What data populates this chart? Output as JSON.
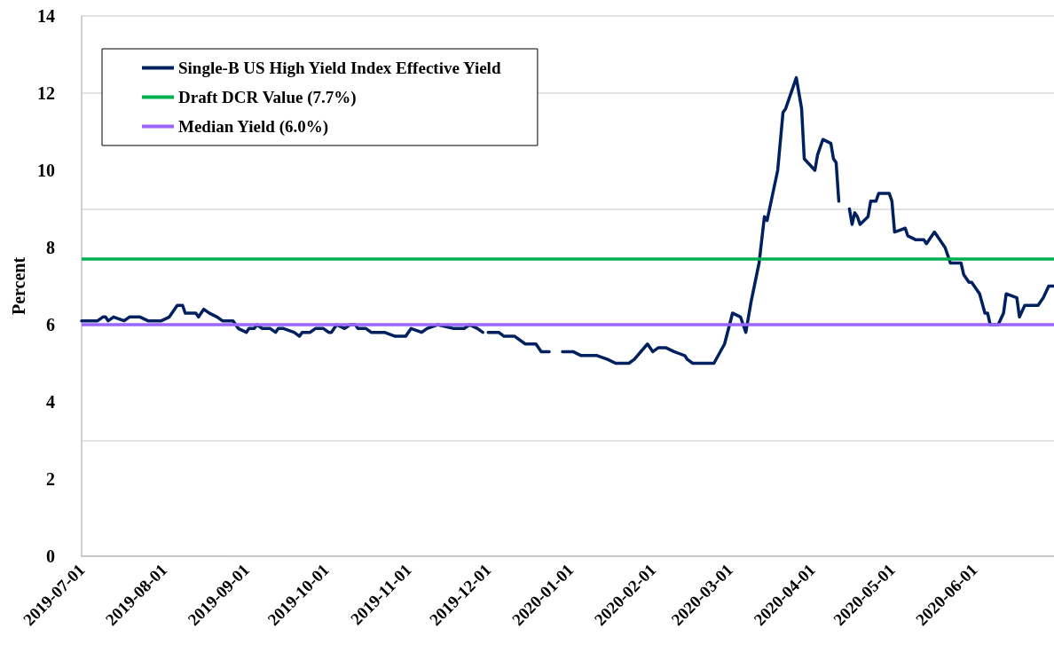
{
  "chart_data": {
    "type": "line",
    "ylabel": "Percent",
    "x": [
      "2019-07-01",
      "2019-07-05",
      "2019-07-07",
      "2019-07-09",
      "2019-07-10",
      "2019-07-11",
      "2019-07-13",
      "2019-07-17",
      "2019-07-19",
      "2019-07-23",
      "2019-07-26",
      "2019-07-31",
      "2019-08-03",
      "2019-08-06",
      "2019-08-07",
      "2019-08-08",
      "2019-08-09",
      "2019-08-13",
      "2019-08-14",
      "2019-08-16",
      "2019-08-18",
      "2019-08-21",
      "2019-08-23",
      "2019-08-27",
      "2019-08-29",
      "2019-09-01",
      "2019-09-02",
      "2019-09-04",
      "2019-09-05",
      "2019-09-07",
      "2019-09-10",
      "2019-09-12",
      "2019-09-13",
      "2019-09-15",
      "2019-09-19",
      "2019-09-21",
      "2019-09-22",
      "2019-09-25",
      "2019-09-27",
      "2019-09-30",
      "2019-10-02",
      "2019-10-03",
      "2019-10-05",
      "2019-10-08",
      "2019-10-10",
      "2019-10-12",
      "2019-10-13",
      "2019-10-16",
      "2019-10-18",
      "2019-10-20",
      "2019-10-23",
      "2019-10-27",
      "2019-10-31",
      "2019-11-02",
      "2019-11-06",
      "2019-11-08",
      "2019-11-12",
      "2019-11-18",
      "2019-11-22",
      "2019-11-24",
      "2019-11-27",
      "2019-11-29",
      "2019-11-30",
      "2019-12-01",
      "2019-12-05",
      "2019-12-07",
      "2019-12-08",
      "2019-12-11",
      "2019-12-15",
      "2019-12-19",
      "2019-12-21",
      "2019-12-24",
      "2019-12-27",
      "2019-12-29",
      "2020-01-02",
      "2020-01-05",
      "2020-01-11",
      "2020-01-15",
      "2020-01-18",
      "2020-01-23",
      "2020-01-25",
      "2020-01-30",
      "2020-02-01",
      "2020-02-03",
      "2020-02-06",
      "2020-02-09",
      "2020-02-13",
      "2020-02-14",
      "2020-02-16",
      "2020-02-22",
      "2020-02-24",
      "2020-02-28",
      "2020-03-02",
      "2020-03-05",
      "2020-03-07",
      "2020-03-09",
      "2020-03-12",
      "2020-03-14",
      "2020-03-15",
      "2020-03-19",
      "2020-03-21",
      "2020-03-22",
      "2020-03-26",
      "2020-03-28",
      "2020-03-29",
      "2020-04-02",
      "2020-04-03",
      "2020-04-05",
      "2020-04-08",
      "2020-04-09",
      "2020-04-10",
      "2020-04-11",
      "2020-04-13",
      "2020-04-15",
      "2020-04-16",
      "2020-04-17",
      "2020-04-18",
      "2020-04-19",
      "2020-04-22",
      "2020-04-23",
      "2020-04-25",
      "2020-04-26",
      "2020-04-30",
      "2020-05-01",
      "2020-05-02",
      "2020-05-06",
      "2020-05-07",
      "2020-05-10",
      "2020-05-13",
      "2020-05-14",
      "2020-05-17",
      "2020-05-21",
      "2020-05-23",
      "2020-05-27",
      "2020-05-28",
      "2020-05-30",
      "2020-05-31",
      "2020-06-03",
      "2020-06-05",
      "2020-06-06",
      "2020-06-07",
      "2020-06-10",
      "2020-06-12",
      "2020-06-13",
      "2020-06-17",
      "2020-06-18",
      "2020-06-20",
      "2020-06-25",
      "2020-06-27",
      "2020-06-29",
      "2020-07-01"
    ],
    "series": [
      {
        "name": "Single-B US High Yield Index Effective Yield",
        "color": "#002060",
        "values": [
          6.1,
          6.1,
          6.1,
          6.2,
          6.2,
          6.1,
          6.2,
          6.1,
          6.2,
          6.2,
          6.1,
          6.1,
          6.2,
          6.5,
          6.5,
          6.5,
          6.3,
          6.3,
          6.2,
          6.4,
          6.3,
          6.2,
          6.1,
          6.1,
          5.9,
          5.8,
          5.9,
          5.9,
          6.0,
          5.9,
          5.9,
          5.8,
          5.9,
          5.9,
          5.8,
          5.7,
          5.8,
          5.8,
          5.9,
          5.9,
          5.8,
          5.8,
          6.0,
          5.9,
          6.0,
          6.0,
          5.9,
          5.9,
          5.8,
          5.8,
          5.8,
          5.7,
          5.7,
          5.9,
          5.8,
          5.9,
          6.0,
          5.9,
          5.9,
          6.0,
          5.9,
          5.8,
          null,
          5.8,
          5.8,
          5.7,
          5.7,
          5.7,
          5.5,
          5.5,
          5.3,
          5.3,
          null,
          5.3,
          5.3,
          5.2,
          5.2,
          5.1,
          5.0,
          5.0,
          5.1,
          5.5,
          5.3,
          5.4,
          5.4,
          5.3,
          5.2,
          5.1,
          5.0,
          5.0,
          5.0,
          5.5,
          6.3,
          6.2,
          5.8,
          6.6,
          7.6,
          8.8,
          8.7,
          10.0,
          11.5,
          11.6,
          12.4,
          11.6,
          10.3,
          10.0,
          10.4,
          10.8,
          10.7,
          10.3,
          10.2,
          9.2,
          null,
          9.0,
          8.6,
          8.9,
          8.8,
          8.6,
          8.8,
          9.2,
          9.2,
          9.4,
          9.4,
          9.2,
          8.4,
          8.5,
          8.3,
          8.2,
          8.2,
          8.1,
          8.4,
          8.0,
          7.6,
          7.6,
          7.3,
          7.1,
          7.1,
          6.8,
          6.3,
          6.3,
          6.0,
          6.0,
          6.3,
          6.8,
          6.7,
          6.2,
          6.5,
          6.5,
          6.7,
          7.0,
          7.0
        ]
      }
    ],
    "ref_lines": [
      {
        "axis": "y",
        "value": 7.7,
        "label": "Draft DCR Value (7.7%)",
        "color": "#00b050"
      },
      {
        "axis": "y",
        "value": 6.0,
        "label": "Median Yield (6.0%)",
        "color": "#9966ff"
      }
    ],
    "xlim": [
      "2019-07-01",
      "2020-07-01"
    ],
    "xticks": [
      "2019-07-01",
      "2019-08-01",
      "2019-09-01",
      "2019-10-01",
      "2019-11-01",
      "2019-12-01",
      "2020-01-01",
      "2020-02-01",
      "2020-03-01",
      "2020-04-01",
      "2020-05-01",
      "2020-06-01"
    ],
    "ylim": [
      0,
      14
    ],
    "yticks": [
      0,
      2,
      4,
      6,
      8,
      10,
      12,
      14
    ],
    "grid": "y",
    "legend": "top left",
    "marker": "none",
    "line_style": "solid"
  }
}
